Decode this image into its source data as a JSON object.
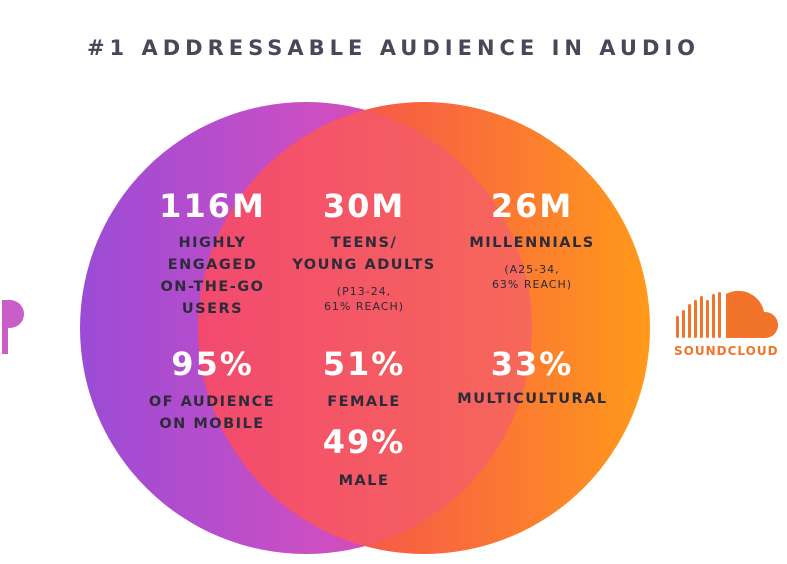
{
  "title": "#1 ADDRESSABLE AUDIENCE IN AUDIO",
  "colors": {
    "left_circle_start": "#9b4bd6",
    "left_circle_end": "#e84cab",
    "right_circle_start": "#f3465a",
    "right_circle_end": "#ff9a1a",
    "text_dark": "#2c2b3a",
    "soundcloud_orange": "#f2742a",
    "pandora_pink": "#c95ec8"
  },
  "left": {
    "stat1": {
      "value": "116M",
      "label_lines": [
        "HIGHLY",
        "ENGAGED",
        "ON-THE-GO",
        "USERS"
      ]
    },
    "stat2": {
      "value": "95%",
      "label_lines": [
        "OF AUDIENCE",
        "ON MOBILE"
      ]
    }
  },
  "center": {
    "stat1": {
      "value": "30M",
      "label_lines": [
        "TEENS/",
        "YOUNG ADULTS"
      ],
      "note_lines": [
        "(P13-24,",
        "61% REACH)"
      ]
    },
    "stat2": {
      "value": "51%",
      "label": "FEMALE"
    },
    "stat3": {
      "value": "49%",
      "label": "MALE"
    }
  },
  "right": {
    "stat1": {
      "value": "26M",
      "label": "MILLENNIALS",
      "note_lines": [
        "(A25-34,",
        "63% REACH)"
      ]
    },
    "stat2": {
      "value": "33%",
      "label": "MULTICULTURAL"
    }
  },
  "logos": {
    "left_icon": "pandora-icon",
    "right_icon": "soundcloud-icon",
    "right_name": "SOUNDCLOUD"
  }
}
